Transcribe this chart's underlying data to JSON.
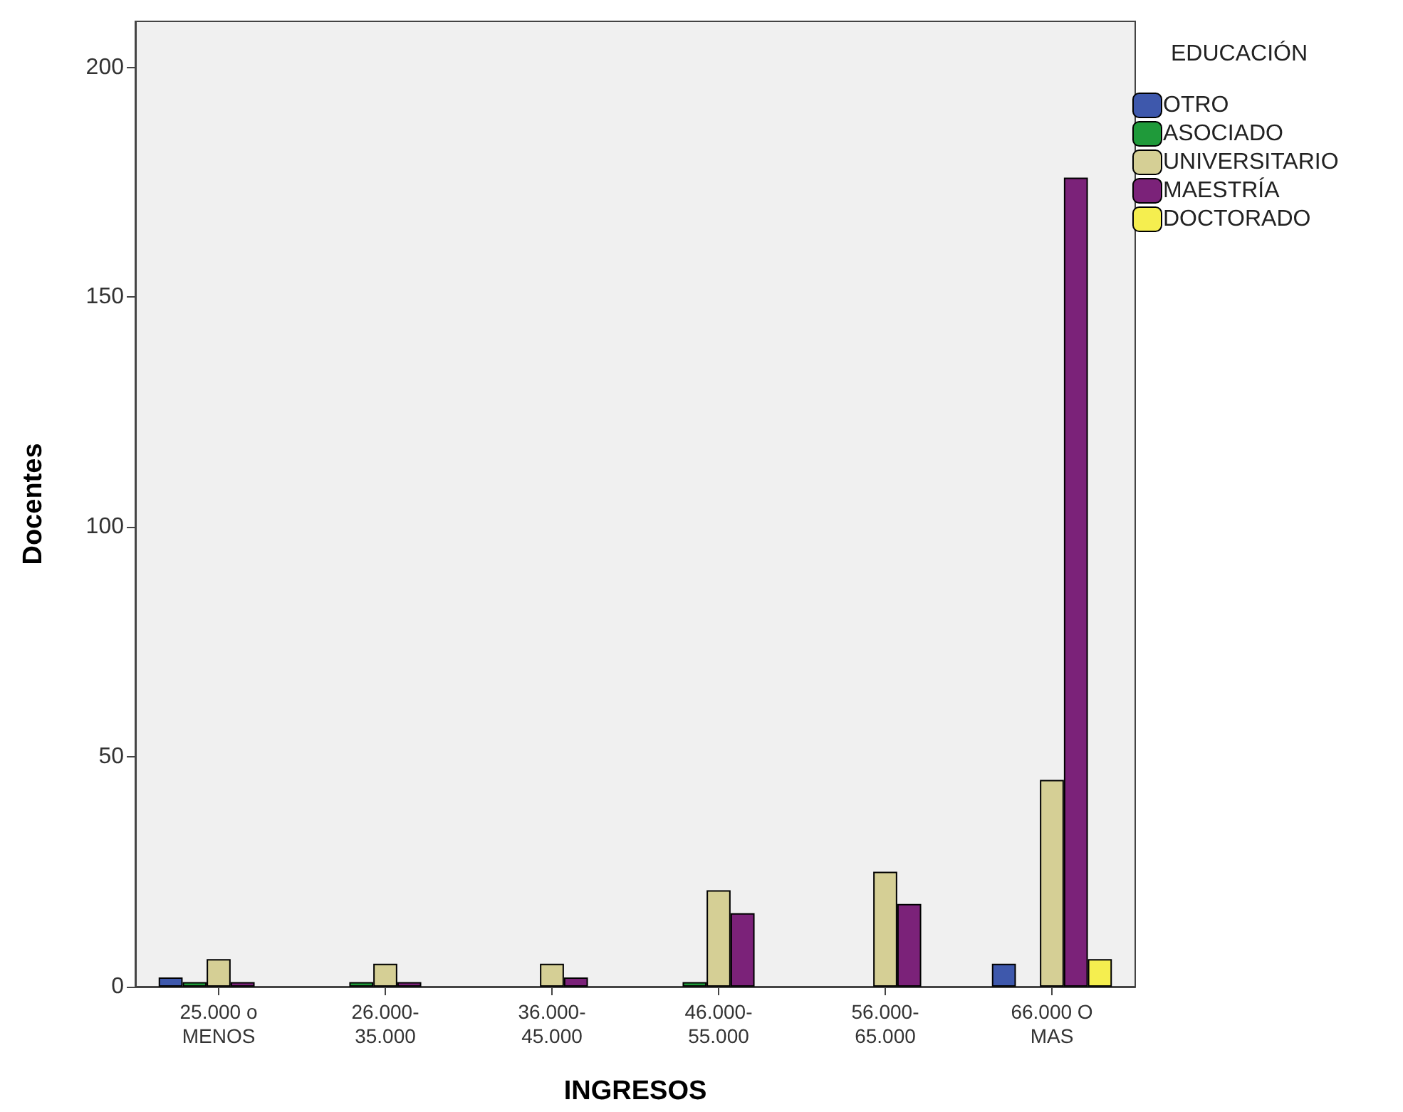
{
  "chart_data": {
    "type": "bar",
    "xlabel": "INGRESOS",
    "ylabel": "Docentes",
    "legend_title": "EDUCACIÓN",
    "categories": [
      "25.000 o\nMENOS",
      "26.000-\n35.000",
      "36.000-\n45.000",
      "46.000-\n55.000",
      "56.000-\n65.000",
      "66.000 O\nMAS"
    ],
    "series": [
      {
        "name": "OTRO",
        "color": "#3e58ac",
        "values": [
          2,
          null,
          null,
          null,
          null,
          5
        ]
      },
      {
        "name": "ASOCIADO",
        "color": "#1f9a3a",
        "values": [
          1,
          1,
          null,
          1,
          null,
          null
        ]
      },
      {
        "name": "UNIVERSITARIO",
        "color": "#d5cf95",
        "values": [
          6,
          5,
          5,
          21,
          25,
          45
        ]
      },
      {
        "name": "MAESTRÍA",
        "color": "#7b2279",
        "values": [
          1,
          1,
          2,
          16,
          18,
          176
        ]
      },
      {
        "name": "DOCTORADO",
        "color": "#f5ee4f",
        "values": [
          null,
          null,
          null,
          null,
          null,
          6
        ]
      }
    ],
    "ylim": [
      0,
      210
    ],
    "yticks": [
      0,
      50,
      100,
      150,
      200
    ],
    "grid": false,
    "legend": "top right"
  }
}
